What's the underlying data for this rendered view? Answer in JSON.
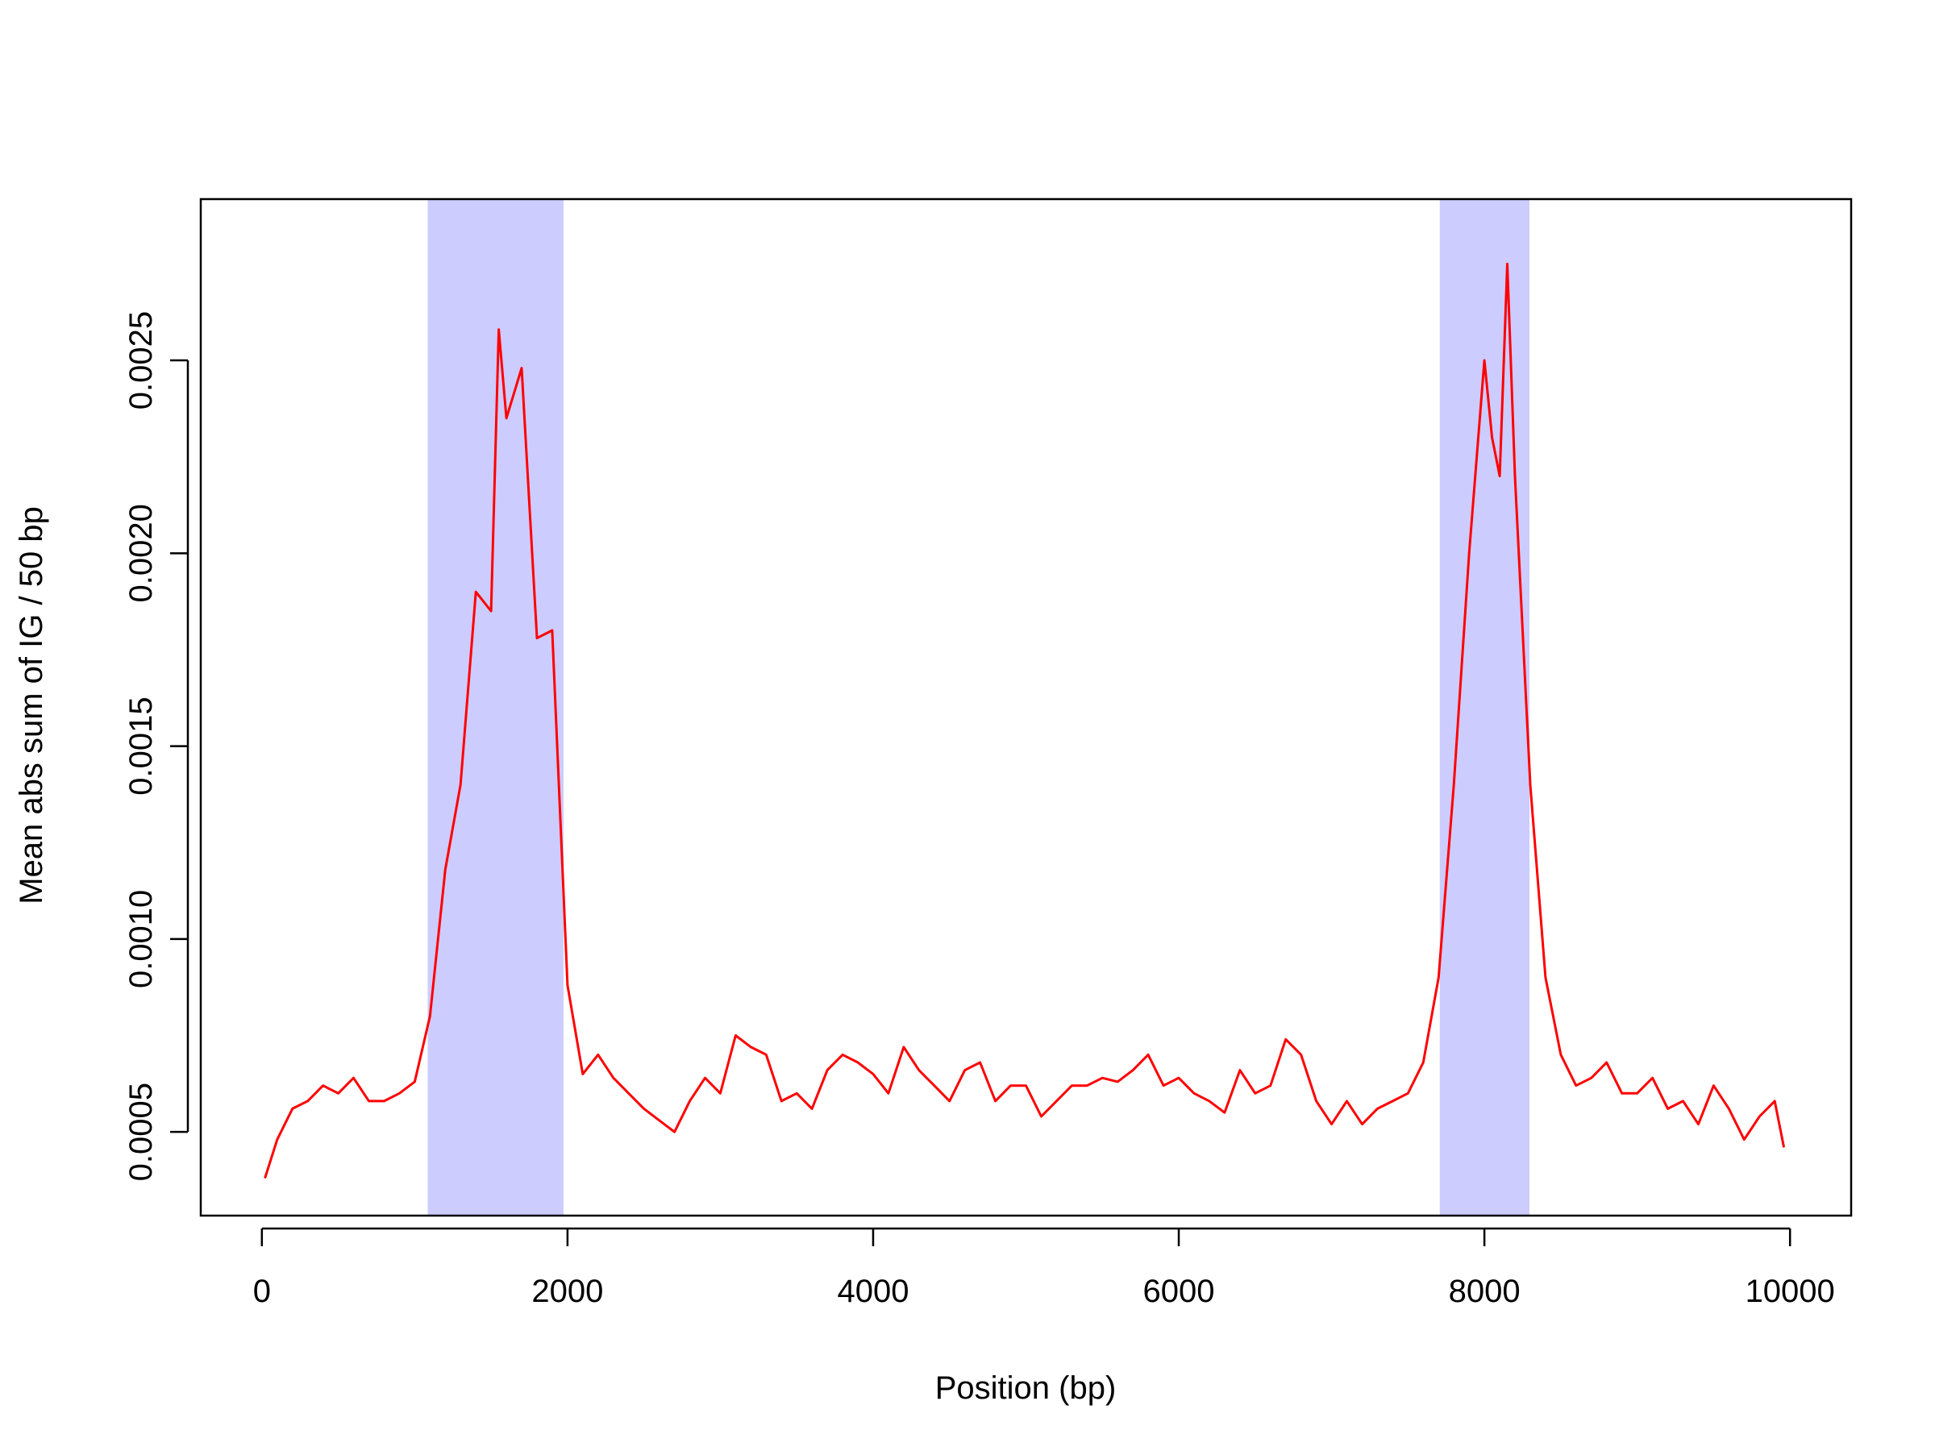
{
  "chart_data": {
    "type": "line",
    "xlabel": "Position (bp)",
    "ylabel": "Mean abs sum of IG / 50 bp",
    "x": [
      20,
      100,
      200,
      300,
      400,
      500,
      600,
      700,
      800,
      900,
      1000,
      1100,
      1200,
      1300,
      1400,
      1500,
      1550,
      1600,
      1700,
      1800,
      1900,
      2000,
      2100,
      2200,
      2300,
      2400,
      2500,
      2600,
      2700,
      2800,
      2900,
      3000,
      3100,
      3200,
      3300,
      3400,
      3500,
      3600,
      3700,
      3800,
      3900,
      4000,
      4100,
      4200,
      4300,
      4400,
      4500,
      4600,
      4700,
      4800,
      4900,
      5000,
      5100,
      5200,
      5300,
      5400,
      5500,
      5600,
      5700,
      5800,
      5900,
      6000,
      6100,
      6200,
      6300,
      6400,
      6500,
      6600,
      6700,
      6800,
      6900,
      7000,
      7100,
      7200,
      7300,
      7400,
      7500,
      7600,
      7700,
      7800,
      7900,
      8000,
      8050,
      8100,
      8150,
      8200,
      8300,
      8400,
      8500,
      8600,
      8700,
      8800,
      8900,
      9000,
      9100,
      9200,
      9300,
      9400,
      9500,
      9600,
      9700,
      9800,
      9900,
      9960
    ],
    "series": [
      {
        "color": "#ff0000",
        "values": [
          0.00038,
          0.00048,
          0.00056,
          0.00058,
          0.00062,
          0.0006,
          0.00064,
          0.00058,
          0.00058,
          0.0006,
          0.00063,
          0.0008,
          0.00118,
          0.0014,
          0.0019,
          0.00185,
          0.00258,
          0.00235,
          0.00248,
          0.00178,
          0.0018,
          0.00088,
          0.00065,
          0.0007,
          0.00064,
          0.0006,
          0.00056,
          0.00053,
          0.0005,
          0.00058,
          0.00064,
          0.0006,
          0.00075,
          0.00072,
          0.0007,
          0.00058,
          0.0006,
          0.00056,
          0.00066,
          0.0007,
          0.00068,
          0.00065,
          0.0006,
          0.00072,
          0.00066,
          0.00062,
          0.00058,
          0.00066,
          0.00068,
          0.00058,
          0.00062,
          0.00062,
          0.00054,
          0.00058,
          0.00062,
          0.00062,
          0.00064,
          0.00063,
          0.00066,
          0.0007,
          0.00062,
          0.00064,
          0.0006,
          0.00058,
          0.00055,
          0.00066,
          0.0006,
          0.00062,
          0.00074,
          0.0007,
          0.00058,
          0.00052,
          0.00058,
          0.00052,
          0.00056,
          0.00058,
          0.0006,
          0.00068,
          0.0009,
          0.0014,
          0.002,
          0.0025,
          0.0023,
          0.0022,
          0.00275,
          0.0022,
          0.0014,
          0.0009,
          0.0007,
          0.00062,
          0.00064,
          0.00068,
          0.0006,
          0.0006,
          0.00064,
          0.00056,
          0.00058,
          0.00052,
          0.00062,
          0.00056,
          0.00048,
          0.00054,
          0.00058,
          0.00046
        ]
      }
    ],
    "highlights": [
      {
        "x": [
          1085,
          1974
        ],
        "color": "#ccccff"
      },
      {
        "x": [
          7708,
          8295
        ],
        "color": "#ccccff"
      }
    ],
    "xlim": [
      -400,
      10400
    ],
    "ylim": [
      0.000283,
      0.002918
    ],
    "xticks": [
      0,
      2000,
      4000,
      6000,
      8000,
      10000
    ],
    "yticks": [
      0.0005,
      {
        "value": 0.001,
        "label": "0.0010"
      },
      0.0015,
      {
        "value": 0.002,
        "label": "0.0020"
      },
      0.0025
    ]
  }
}
